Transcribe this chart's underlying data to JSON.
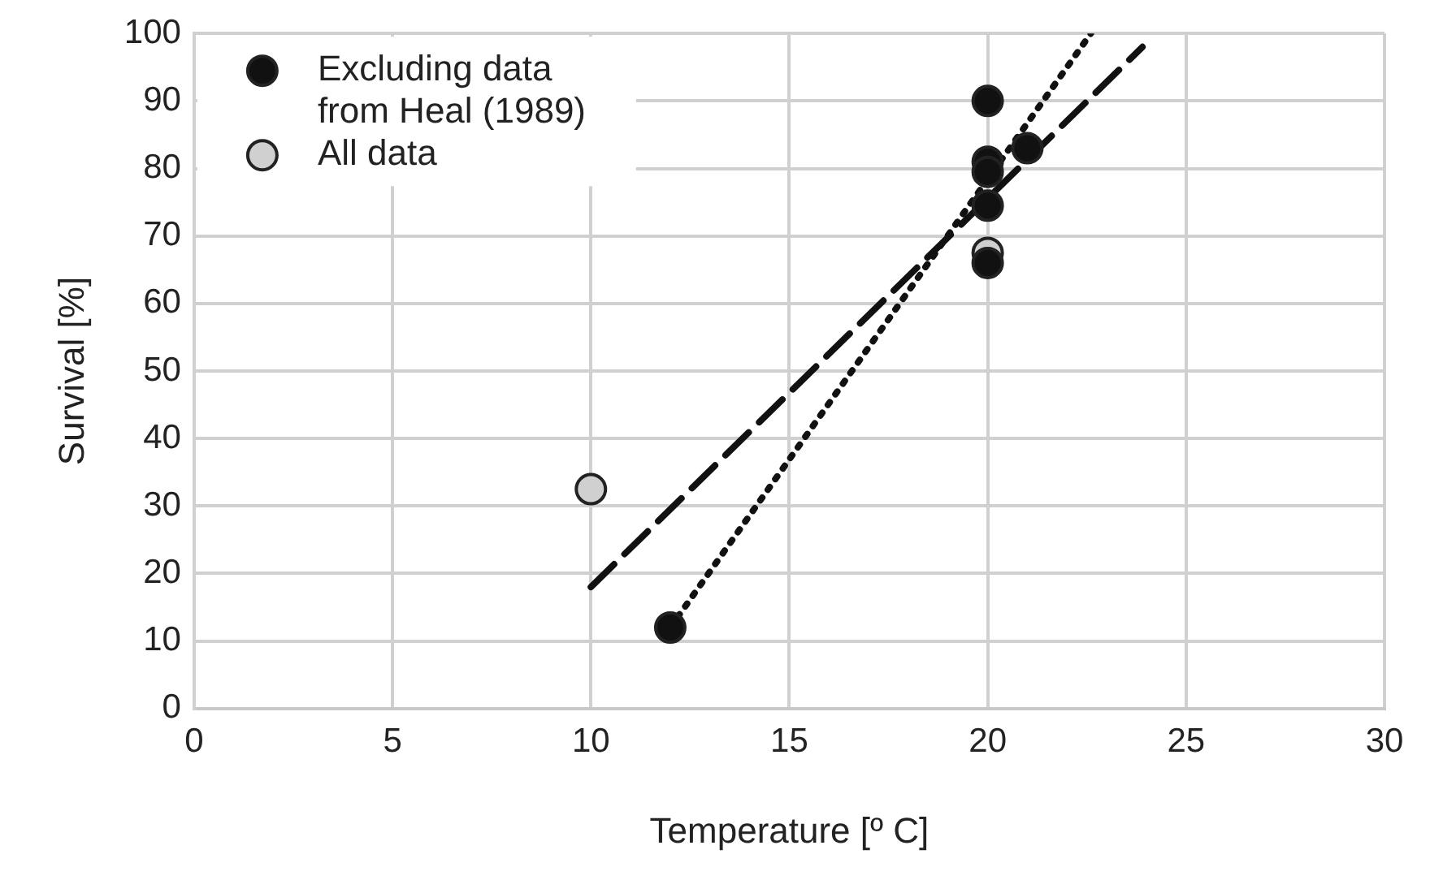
{
  "chart_data": {
    "type": "scatter",
    "xlabel": "Temperature [º C]",
    "ylabel": "Survival [%]",
    "xlim": [
      0,
      30
    ],
    "xticks": [
      0,
      5,
      10,
      15,
      20,
      25,
      30
    ],
    "ylim": [
      0,
      100
    ],
    "yticks": [
      0,
      10,
      20,
      30,
      40,
      50,
      60,
      70,
      80,
      90,
      100
    ],
    "grid": true,
    "legend": "top left",
    "marker": "circle",
    "series": [
      {
        "type": "line",
        "color": "#111111",
        "line_style": "dotted",
        "marker": "none",
        "x": [
          12,
          22.6
        ],
        "values": [
          12,
          100
        ]
      },
      {
        "type": "line",
        "color": "#111111",
        "line_style": "dashed",
        "marker": "none",
        "x": [
          10,
          23.9
        ],
        "values": [
          18,
          98
        ]
      },
      {
        "name": "All data",
        "color": "#d0d0d0",
        "x": [
          10,
          20
        ],
        "values": [
          32.5,
          67.5
        ]
      },
      {
        "name": "Excluding data from Heal (1989)",
        "color": "#111111",
        "x": [
          12,
          20,
          20,
          20,
          21,
          20,
          20
        ],
        "values": [
          12,
          90,
          81,
          79.5,
          83,
          74.5,
          66
        ]
      }
    ]
  }
}
